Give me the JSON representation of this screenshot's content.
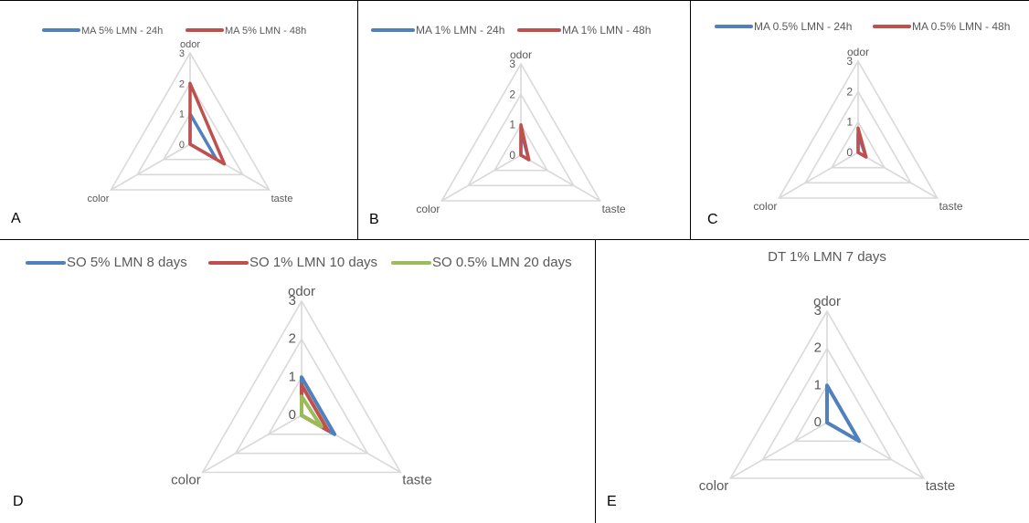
{
  "colors": {
    "grid": "#d9d9d9",
    "text": "#595959",
    "border": "#000000",
    "blue": "#4f81bd",
    "red": "#c0504d",
    "green": "#9bbb59"
  },
  "chart_data": [
    {
      "type": "radar",
      "panel_label": "A",
      "title": "",
      "axes": [
        "odor",
        "taste",
        "color"
      ],
      "ticks": [
        "0",
        "1",
        "2",
        "3"
      ],
      "rmax": 3,
      "legend_position": "top",
      "series": [
        {
          "name": "MA 5% LMN - 24h",
          "color": "#4f81bd",
          "values": [
            1.0,
            1.0,
            0.0
          ]
        },
        {
          "name": "MA 5% LMN - 48h",
          "color": "#c0504d",
          "values": [
            2.0,
            1.3,
            0.0
          ]
        }
      ]
    },
    {
      "type": "radar",
      "panel_label": "B",
      "title": "",
      "axes": [
        "odor",
        "taste",
        "color"
      ],
      "ticks": [
        "0",
        "1",
        "2",
        "3"
      ],
      "rmax": 3,
      "legend_position": "top",
      "series": [
        {
          "name": "MA 1% LMN - 24h",
          "color": "#4f81bd",
          "values": [
            0.8,
            0.3,
            0.0
          ]
        },
        {
          "name": "MA 1% LMN - 48h",
          "color": "#c0504d",
          "values": [
            1.0,
            0.3,
            0.0
          ]
        }
      ]
    },
    {
      "type": "radar",
      "panel_label": "C",
      "title": "",
      "axes": [
        "odor",
        "taste",
        "color"
      ],
      "ticks": [
        "0",
        "1",
        "2",
        "3"
      ],
      "rmax": 3,
      "legend_position": "top",
      "series": [
        {
          "name": "MA 0.5% LMN - 24h",
          "color": "#4f81bd",
          "values": [
            0.6,
            0.3,
            0.0
          ]
        },
        {
          "name": "MA 0.5% LMN - 48h",
          "color": "#c0504d",
          "values": [
            0.8,
            0.3,
            0.0
          ]
        }
      ]
    },
    {
      "type": "radar",
      "panel_label": "D",
      "title": "",
      "axes": [
        "odor",
        "taste",
        "color"
      ],
      "ticks": [
        "0",
        "1",
        "2",
        "3"
      ],
      "rmax": 3,
      "legend_position": "top",
      "series": [
        {
          "name": "SO 5% LMN 8 days",
          "color": "#4f81bd",
          "values": [
            1.0,
            1.0,
            0.0
          ]
        },
        {
          "name": "SO 1% LMN 10 days",
          "color": "#c0504d",
          "values": [
            0.8,
            0.8,
            0.0
          ]
        },
        {
          "name": "SO 0.5% LMN 20 days",
          "color": "#9bbb59",
          "values": [
            0.5,
            0.6,
            0.0
          ]
        }
      ]
    },
    {
      "type": "radar",
      "panel_label": "E",
      "title": "DT 1% LMN 7 days",
      "axes": [
        "odor",
        "taste",
        "color"
      ],
      "ticks": [
        "0",
        "1",
        "2",
        "3"
      ],
      "rmax": 3,
      "legend_position": "none",
      "series": [
        {
          "name": "",
          "color": "#4f81bd",
          "values": [
            1.0,
            1.0,
            0.0
          ]
        }
      ]
    }
  ]
}
